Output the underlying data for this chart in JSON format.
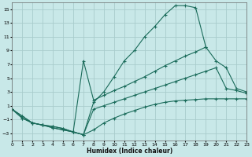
{
  "xlabel": "Humidex (Indice chaleur)",
  "bg_color": "#c8e8e8",
  "grid_color": "#a8cccc",
  "line_color": "#1a6b5a",
  "xlim": [
    0,
    23
  ],
  "ylim": [
    -4,
    16
  ],
  "xticks": [
    0,
    1,
    2,
    3,
    4,
    5,
    6,
    7,
    8,
    9,
    10,
    11,
    12,
    13,
    14,
    15,
    16,
    17,
    18,
    19,
    20,
    21,
    22,
    23
  ],
  "yticks": [
    -3,
    -1,
    1,
    3,
    5,
    7,
    9,
    11,
    13,
    15
  ],
  "series": [
    {
      "x": [
        0,
        1,
        2,
        3,
        4,
        5,
        6,
        7,
        8,
        9,
        10,
        11,
        12,
        13,
        14,
        15,
        16,
        17,
        18,
        19
      ],
      "y": [
        0.5,
        -0.8,
        -1.5,
        -1.8,
        -2.0,
        -2.3,
        -2.8,
        -3.2,
        1.5,
        3.0,
        5.2,
        7.5,
        9.0,
        11.0,
        12.5,
        14.2,
        15.5,
        15.5,
        15.2,
        9.5
      ]
    },
    {
      "x": [
        0,
        1,
        2,
        3,
        4,
        5,
        6,
        7,
        8,
        9,
        10,
        11,
        12,
        13,
        14,
        15,
        16,
        17,
        18,
        19,
        20,
        21,
        22,
        23
      ],
      "y": [
        0.5,
        -0.8,
        -1.5,
        -1.8,
        -2.0,
        -2.3,
        -2.8,
        7.5,
        1.8,
        2.5,
        3.2,
        3.8,
        4.5,
        5.2,
        6.0,
        6.8,
        7.5,
        8.2,
        8.8,
        9.5,
        7.5,
        6.5,
        3.5,
        3.0
      ]
    },
    {
      "x": [
        0,
        1,
        2,
        3,
        4,
        5,
        6,
        7,
        8,
        9,
        10,
        11,
        12,
        13,
        14,
        15,
        16,
        17,
        18,
        19,
        20,
        21,
        22,
        23
      ],
      "y": [
        0.5,
        -0.5,
        -1.5,
        -1.8,
        -2.2,
        -2.5,
        -2.8,
        -3.2,
        0.5,
        1.0,
        1.5,
        2.0,
        2.5,
        3.0,
        3.5,
        4.0,
        4.5,
        5.0,
        5.5,
        6.0,
        6.5,
        3.5,
        3.2,
        2.8
      ]
    },
    {
      "x": [
        0,
        1,
        2,
        3,
        4,
        5,
        6,
        7,
        8,
        9,
        10,
        11,
        12,
        13,
        14,
        15,
        16,
        17,
        18,
        19,
        20,
        21,
        22,
        23
      ],
      "y": [
        0.5,
        -0.5,
        -1.5,
        -1.8,
        -2.2,
        -2.5,
        -2.8,
        -3.2,
        -2.5,
        -1.5,
        -0.8,
        -0.2,
        0.3,
        0.8,
        1.2,
        1.5,
        1.7,
        1.8,
        1.9,
        2.0,
        2.0,
        2.0,
        2.0,
        2.0
      ]
    }
  ]
}
